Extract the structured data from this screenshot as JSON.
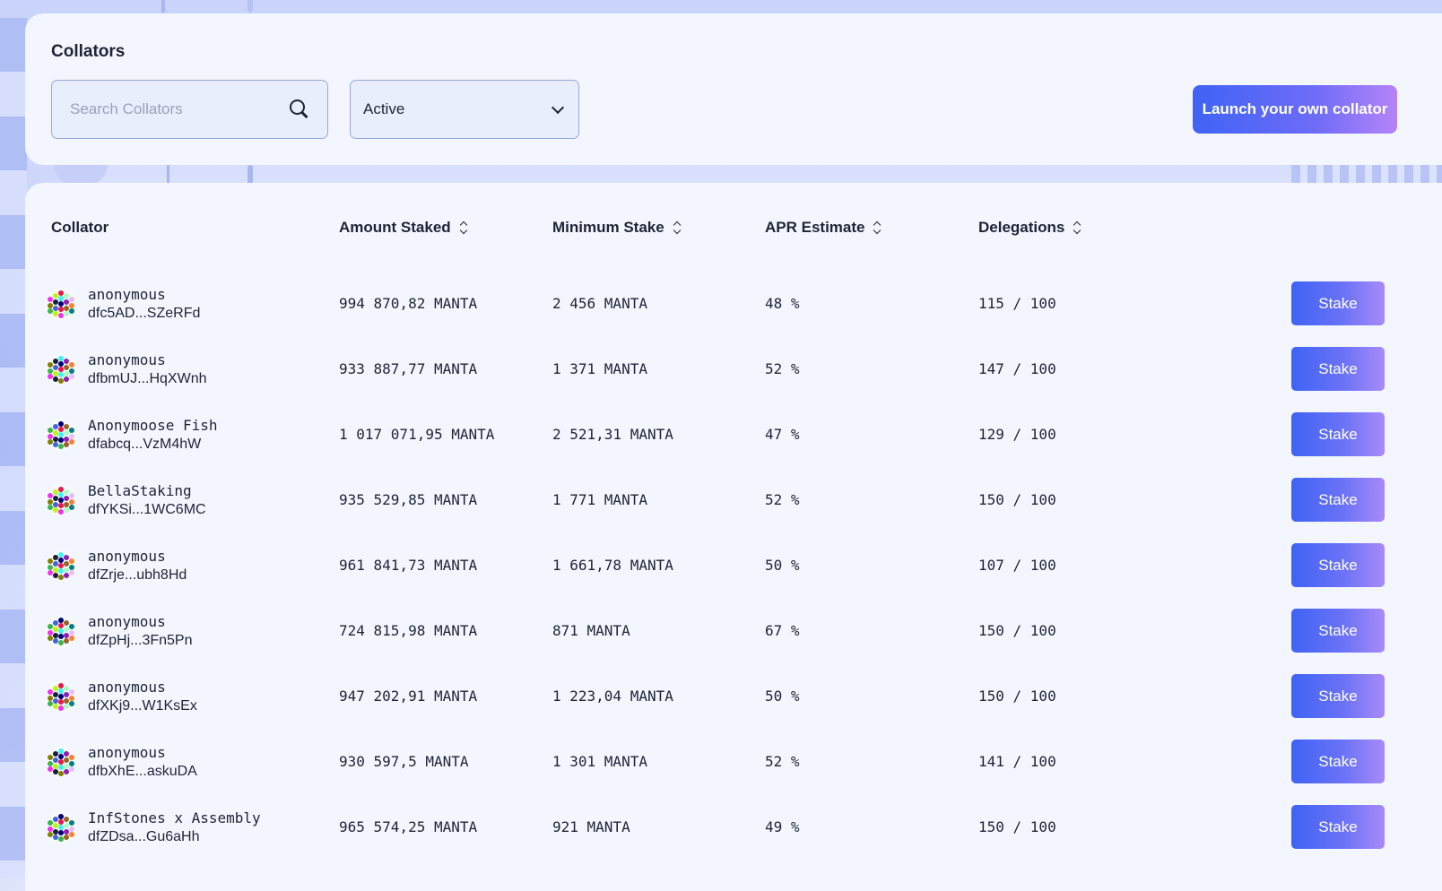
{
  "filters": {
    "title": "Collators",
    "search_placeholder": "Search Collators",
    "status_selected": "Active",
    "launch_label": "Launch your own collator"
  },
  "table": {
    "headers": {
      "collator": "Collator",
      "amount": "Amount Staked",
      "min": "Minimum Stake",
      "apr": "APR Estimate",
      "delegations": "Delegations"
    },
    "stake_label": "Stake",
    "rows": [
      {
        "name": "anonymous",
        "address": "dfc5AD...SZeRFd",
        "amount": "994 870,82 MANTA",
        "min": "2 456 MANTA",
        "apr": "48 %",
        "delegations": "115 / 100"
      },
      {
        "name": "anonymous",
        "address": "dfbmUJ...HqXWnh",
        "amount": "933 887,77 MANTA",
        "min": "1 371 MANTA",
        "apr": "52 %",
        "delegations": "147 / 100"
      },
      {
        "name": "Anonymoose Fish",
        "address": "dfabcq...VzM4hW",
        "amount": "1 017 071,95 MANTA",
        "min": "2 521,31 MANTA",
        "apr": "47 %",
        "delegations": "129 / 100"
      },
      {
        "name": "BellaStaking",
        "address": "dfYKSi...1WC6MC",
        "amount": "935 529,85 MANTA",
        "min": "1 771 MANTA",
        "apr": "52 %",
        "delegations": "150 / 100"
      },
      {
        "name": "anonymous",
        "address": "dfZrje...ubh8Hd",
        "amount": "961 841,73 MANTA",
        "min": "1 661,78 MANTA",
        "apr": "50 %",
        "delegations": "107 / 100"
      },
      {
        "name": "anonymous",
        "address": "dfZpHj...3Fn5Pn",
        "amount": "724 815,98 MANTA",
        "min": "871 MANTA",
        "apr": "67 %",
        "delegations": "150 / 100"
      },
      {
        "name": "anonymous",
        "address": "dfXKj9...W1KsEx",
        "amount": "947 202,91 MANTA",
        "min": "1 223,04 MANTA",
        "apr": "50 %",
        "delegations": "150 / 100"
      },
      {
        "name": "anonymous",
        "address": "dfbXhE...askuDA",
        "amount": "930 597,5 MANTA",
        "min": "1 301 MANTA",
        "apr": "52 %",
        "delegations": "141 / 100"
      },
      {
        "name": "InfStones x Assembly",
        "address": "dfZDsa...Gu6aHh",
        "amount": "965 574,25 MANTA",
        "min": "921 MANTA",
        "apr": "49 %",
        "delegations": "150 / 100"
      }
    ]
  },
  "colors": {
    "accent_start": "#3f63f5",
    "accent_end": "#b684f8",
    "panel": "#f3f6fe",
    "text": "#1e2336"
  }
}
